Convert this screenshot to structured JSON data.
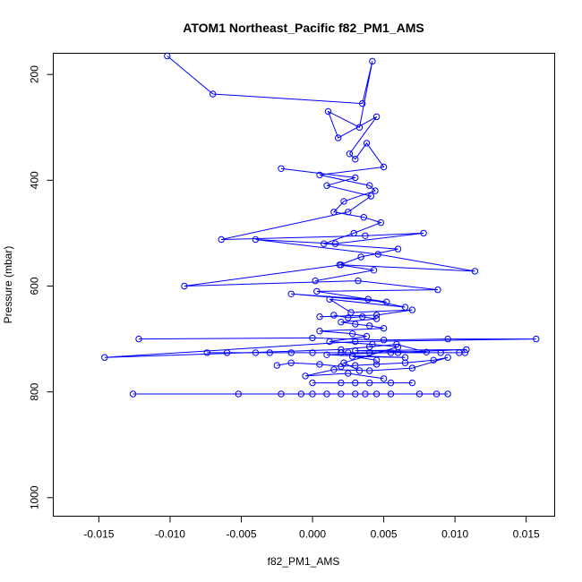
{
  "chart_data": {
    "type": "scatter",
    "title": "ATOM1 Northeast_Pacific f82_PM1_AMS",
    "xlabel": "f82_PM1_AMS",
    "ylabel": "Pressure (mbar)",
    "xlim": [
      -0.0182,
      0.017
    ],
    "ylim": [
      1035,
      160
    ],
    "y_reversed": true,
    "grid": false,
    "legend": "none",
    "marker": "open-circle",
    "connected": true,
    "color": "#0000ff",
    "x_ticks": [
      -0.015,
      -0.01,
      -0.005,
      0.0,
      0.005,
      0.01,
      0.015
    ],
    "x_tick_labels": [
      "-0.015",
      "-0.010",
      "-0.005",
      "0.000",
      "0.005",
      "0.010",
      "0.015"
    ],
    "y_ticks": [
      200,
      400,
      600,
      800,
      1000
    ],
    "y_tick_labels": [
      "200",
      "400",
      "600",
      "800",
      "1000"
    ],
    "series": [
      {
        "x": [
          -0.0102,
          -0.007,
          0.0035,
          0.0042,
          0.0033,
          0.0011,
          0.0018,
          0.0045,
          0.0026,
          0.003,
          0.0038,
          0.005,
          0.0005,
          0.004,
          0.0044,
          0.0022,
          0.0015,
          0.0036,
          0.0048,
          0.0029,
          0.0008,
          0.006,
          0.0034,
          0.0019,
          0.0043,
          0.0002
        ],
        "y": [
          165,
          237,
          255,
          175,
          300,
          270,
          320,
          280,
          350,
          360,
          330,
          375,
          390,
          410,
          420,
          440,
          460,
          470,
          480,
          500,
          520,
          530,
          545,
          560,
          570,
          590
        ]
      },
      {
        "x": [
          -0.0022,
          0.003,
          0.001,
          0.0041,
          0.0025,
          -0.0064,
          0.0037,
          0.0078,
          0.0016,
          -0.004,
          0.0046,
          0.0114,
          0.002,
          -0.009,
          0.0032,
          0.0088,
          0.0003,
          0.0052,
          -0.0015,
          0.0039,
          0.0065,
          0.0012,
          0.0027,
          0.007,
          0.0045,
          0.0005
        ],
        "y": [
          378,
          395,
          410,
          430,
          460,
          512,
          505,
          500,
          520,
          512,
          540,
          572,
          560,
          600,
          590,
          607,
          610,
          630,
          615,
          625,
          640,
          625,
          650,
          645,
          655,
          658
        ]
      },
      {
        "x": [
          -0.0122,
          0.0,
          0.005,
          0.0095,
          0.0157,
          0.003,
          -0.0146,
          0.002,
          0.004,
          0.0059,
          0.008,
          0.003,
          0.0108,
          0.001,
          0.0065,
          0.0028,
          0.0045
        ],
        "y": [
          700,
          698,
          702,
          700,
          700,
          705,
          735,
          720,
          715,
          710,
          725,
          722,
          720,
          730,
          735,
          733,
          740
        ]
      },
      {
        "x": [
          -0.0074,
          -0.006,
          -0.004,
          -0.003,
          -0.0015,
          0.0,
          0.0025,
          0.004,
          0.006,
          0.009,
          0.0103,
          0.0107,
          0.0055,
          0.002
        ],
        "y": [
          726,
          726,
          726,
          726,
          726,
          726,
          726,
          726,
          726,
          726,
          726,
          726,
          726,
          726
        ]
      },
      {
        "x": [
          -0.0025,
          -0.0015,
          0.0005,
          0.002,
          0.003,
          0.0045,
          0.0065,
          0.0085,
          0.0095,
          0.007,
          0.004,
          0.0015,
          -0.0005,
          0.0025,
          0.005
        ],
        "y": [
          750,
          745,
          748,
          752,
          750,
          748,
          745,
          740,
          735,
          755,
          760,
          758,
          770,
          765,
          775
        ]
      },
      {
        "x": [
          0.0,
          0.003,
          0.0055,
          0.007,
          0.004,
          0.002
        ],
        "y": [
          783,
          783,
          783,
          783,
          783,
          783
        ]
      },
      {
        "x": [
          -0.0126,
          -0.0052,
          -0.0022,
          -0.0008,
          0.0,
          0.001,
          0.002,
          0.003,
          0.0037,
          0.0045,
          0.0055,
          0.0075,
          0.0087,
          0.0095
        ],
        "y": [
          804,
          804,
          804,
          804,
          804,
          804,
          804,
          804,
          804,
          804,
          804,
          804,
          804,
          804
        ]
      },
      {
        "x": [
          0.0015,
          0.0025,
          0.0035,
          0.0045,
          0.002,
          0.003,
          0.004,
          0.005,
          0.0005,
          0.0028,
          0.0038,
          0.0012,
          0.0042,
          0.006,
          0.0022,
          0.0033
        ],
        "y": [
          655,
          660,
          658,
          662,
          668,
          672,
          675,
          680,
          685,
          690,
          695,
          705,
          710,
          715,
          745,
          760
        ]
      }
    ]
  }
}
